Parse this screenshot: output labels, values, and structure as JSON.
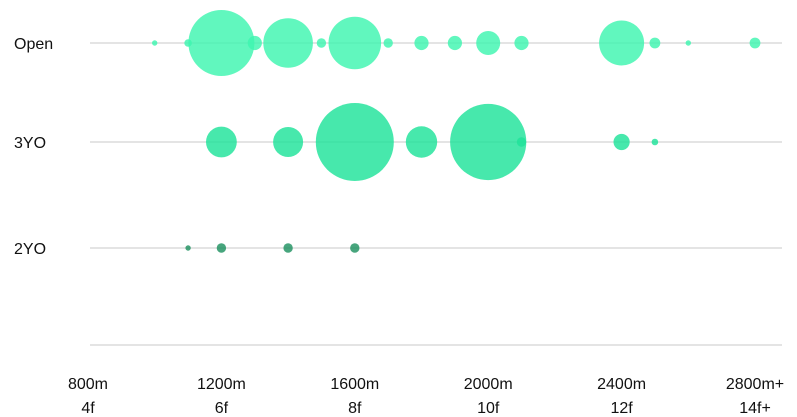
{
  "chart_data": {
    "type": "scatter",
    "title": "",
    "xlabel": "",
    "ylabel": "",
    "x_range_m": [
      800,
      2800
    ],
    "x_ticks": [
      {
        "value": 800,
        "line1": "800m",
        "line2": "4f"
      },
      {
        "value": 1200,
        "line1": "1200m",
        "line2": "6f"
      },
      {
        "value": 1600,
        "line1": "1600m",
        "line2": "8f"
      },
      {
        "value": 2000,
        "line1": "2000m",
        "line2": "10f"
      },
      {
        "value": 2400,
        "line1": "2400m",
        "line2": "12f"
      },
      {
        "value": 2800,
        "line1": "2800m+",
        "line2": "14f+"
      }
    ],
    "grid": false,
    "series": [
      {
        "name": "Open",
        "color": "#3ef5b0",
        "points": [
          {
            "x": 1000,
            "size": 2
          },
          {
            "x": 1100,
            "size": 4
          },
          {
            "x": 1200,
            "size": 300
          },
          {
            "x": 1300,
            "size": 14
          },
          {
            "x": 1400,
            "size": 170
          },
          {
            "x": 1500,
            "size": 6
          },
          {
            "x": 1600,
            "size": 190
          },
          {
            "x": 1700,
            "size": 6
          },
          {
            "x": 1800,
            "size": 14
          },
          {
            "x": 1900,
            "size": 14
          },
          {
            "x": 2000,
            "size": 40
          },
          {
            "x": 2100,
            "size": 14
          },
          {
            "x": 2400,
            "size": 140
          },
          {
            "x": 2500,
            "size": 8
          },
          {
            "x": 2600,
            "size": 2
          },
          {
            "x": 2800,
            "size": 8
          }
        ]
      },
      {
        "name": "3YO",
        "color": "#1fe39a",
        "points": [
          {
            "x": 1200,
            "size": 65
          },
          {
            "x": 1400,
            "size": 62
          },
          {
            "x": 1600,
            "size": 420
          },
          {
            "x": 1800,
            "size": 68
          },
          {
            "x": 2000,
            "size": 400
          },
          {
            "x": 2100,
            "size": 6
          },
          {
            "x": 2400,
            "size": 18
          },
          {
            "x": 2500,
            "size": 3
          }
        ]
      },
      {
        "name": "2YO",
        "color": "#1e9160",
        "points": [
          {
            "x": 1100,
            "size": 2
          },
          {
            "x": 1200,
            "size": 6
          },
          {
            "x": 1400,
            "size": 6
          },
          {
            "x": 1600,
            "size": 6
          }
        ]
      }
    ]
  }
}
